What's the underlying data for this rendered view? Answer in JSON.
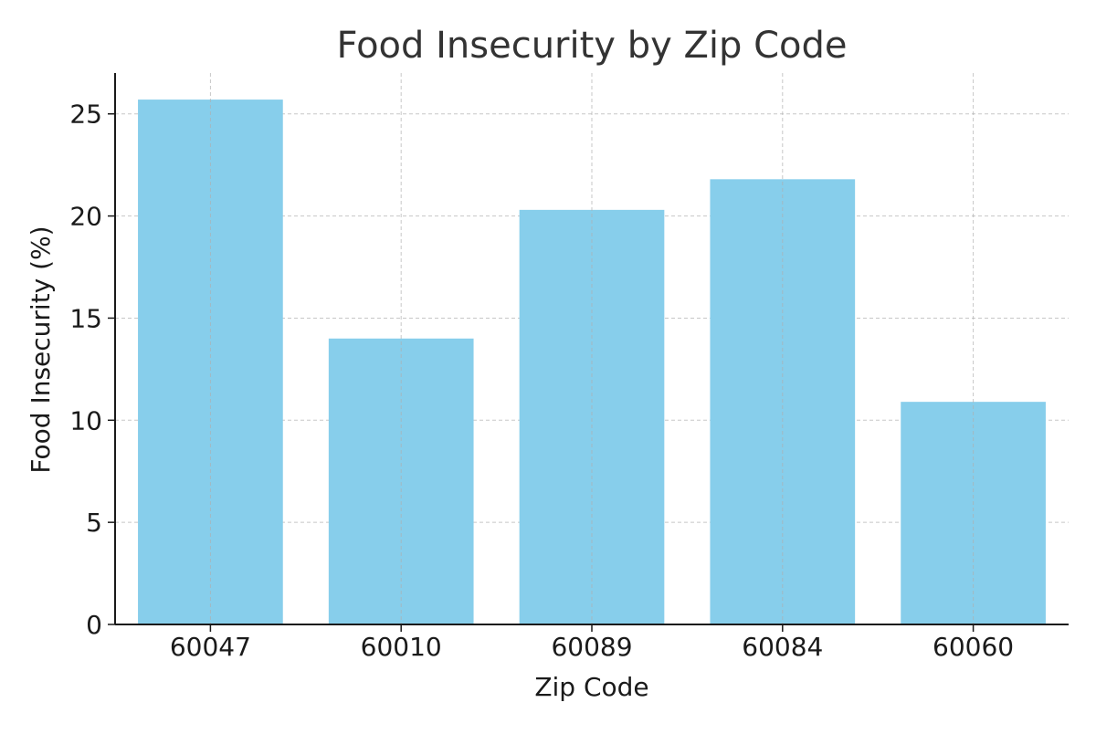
{
  "chart_data": {
    "type": "bar",
    "title": "Food Insecurity by Zip Code",
    "xlabel": "Zip Code",
    "ylabel": "Food Insecurity (%)",
    "categories": [
      "60047",
      "60010",
      "60089",
      "60084",
      "60060"
    ],
    "values": [
      25.7,
      14.0,
      20.3,
      21.8,
      10.9
    ],
    "ylim": [
      0,
      27
    ],
    "yticks": [
      0,
      5,
      10,
      15,
      20,
      25
    ],
    "grid": true,
    "bar_color": "#87ceeb"
  }
}
